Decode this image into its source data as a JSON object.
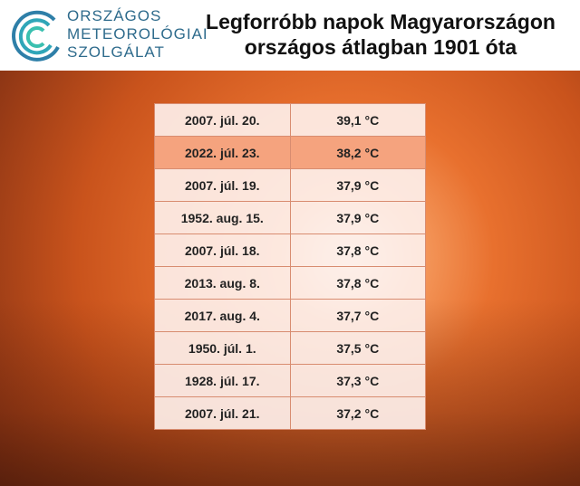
{
  "header": {
    "logo": [
      "ORSZÁGOS",
      "METEOROLÓGIAI",
      "SZOLGÁLAT"
    ],
    "title": [
      "Legforróbb napok Magyarországon",
      "országos átlagban 1901 óta"
    ]
  },
  "table": {
    "highlight_row": 1,
    "rows": [
      [
        "2007. júl. 20.",
        "39,1 °C"
      ],
      [
        "2022. júl. 23.",
        "38,2 °C"
      ],
      [
        "2007. júl. 19.",
        "37,9 °C"
      ],
      [
        "1952. aug. 15.",
        "37,9 °C"
      ],
      [
        "2007. júl. 18.",
        "37,8 °C"
      ],
      [
        "2013. aug. 8.",
        "37,8 °C"
      ],
      [
        "2017. aug. 4.",
        "37,7 °C"
      ],
      [
        "1950. júl. 1.",
        "37,5 °C"
      ],
      [
        "1928. júl. 17.",
        "37,3 °C"
      ],
      [
        "2007. júl. 21.",
        "37,2 °C"
      ]
    ]
  }
}
